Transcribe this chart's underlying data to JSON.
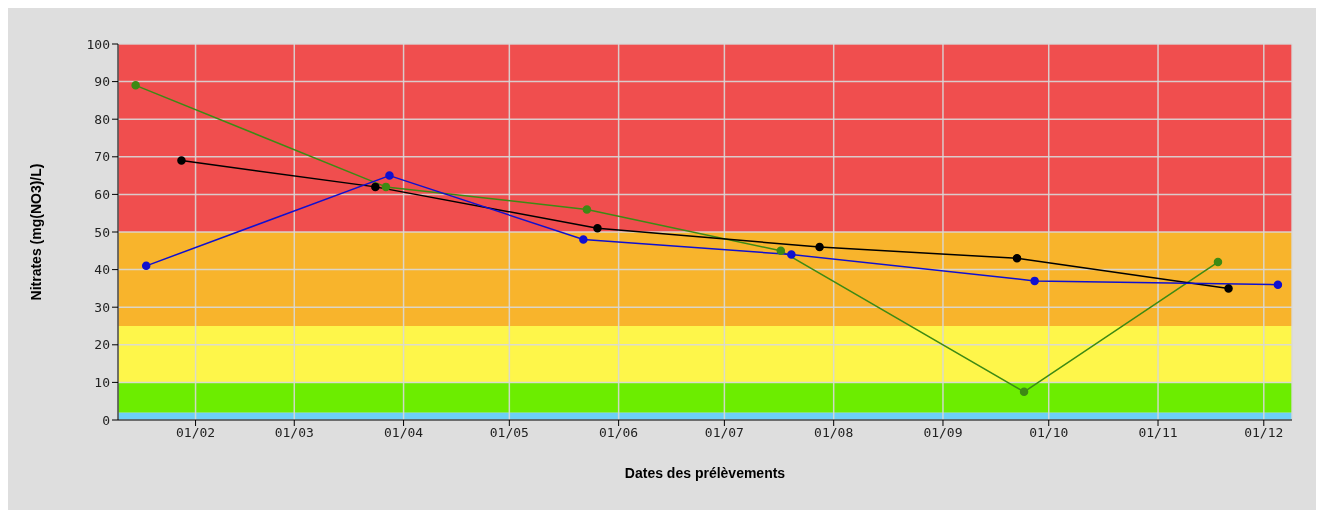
{
  "chart_data": {
    "type": "line",
    "xlabel": "Dates des prélèvements",
    "ylabel": "Nitrates (mg(NO3)/L)",
    "xlim": [
      "--01-10",
      "--12-09"
    ],
    "xticks": [
      {
        "value": "--02-01",
        "label": "01/02"
      },
      {
        "value": "--03-01",
        "label": "01/03"
      },
      {
        "value": "--04-01",
        "label": "01/04"
      },
      {
        "value": "--05-01",
        "label": "01/05"
      },
      {
        "value": "--06-01",
        "label": "01/06"
      },
      {
        "value": "--07-01",
        "label": "01/07"
      },
      {
        "value": "--08-01",
        "label": "01/08"
      },
      {
        "value": "--09-01",
        "label": "01/09"
      },
      {
        "value": "--10-01",
        "label": "01/10"
      },
      {
        "value": "--11-01",
        "label": "01/11"
      },
      {
        "value": "--12-01",
        "label": "01/12"
      }
    ],
    "ylim": [
      0,
      100
    ],
    "yticks": [
      0,
      10,
      20,
      30,
      40,
      50,
      60,
      70,
      80,
      90,
      100
    ],
    "grid": true,
    "marker": "circle",
    "line_style": "solid",
    "bands": [
      {
        "axis": "y",
        "from": 0,
        "to": 2,
        "color": "#6dcff6"
      },
      {
        "axis": "y",
        "from": 2,
        "to": 10,
        "color": "#6ced00"
      },
      {
        "axis": "y",
        "from": 10,
        "to": 25,
        "color": "#fef64a"
      },
      {
        "axis": "y",
        "from": 25,
        "to": 50,
        "color": "#f8b42c"
      },
      {
        "axis": "y",
        "from": 50,
        "to": 100,
        "color": "#f04e4e"
      }
    ],
    "series": [
      {
        "color": "#3d8a14",
        "x": [
          "--01-15",
          "--03-27",
          "--05-23",
          "--07-17",
          "--09-24",
          "--11-18"
        ],
        "values": [
          89,
          62,
          56,
          45,
          7.5,
          42
        ]
      },
      {
        "color": "#000000",
        "x": [
          "--01-28",
          "--03-24",
          "--05-26",
          "--07-28",
          "--09-22",
          "--11-21"
        ],
        "values": [
          69,
          62,
          51,
          46,
          43,
          35
        ]
      },
      {
        "color": "#1010d0",
        "x": [
          "--01-18",
          "--03-28",
          "--05-22",
          "--07-20",
          "--09-27",
          "--12-05"
        ],
        "values": [
          41,
          65,
          48,
          44,
          37,
          36
        ]
      }
    ]
  }
}
